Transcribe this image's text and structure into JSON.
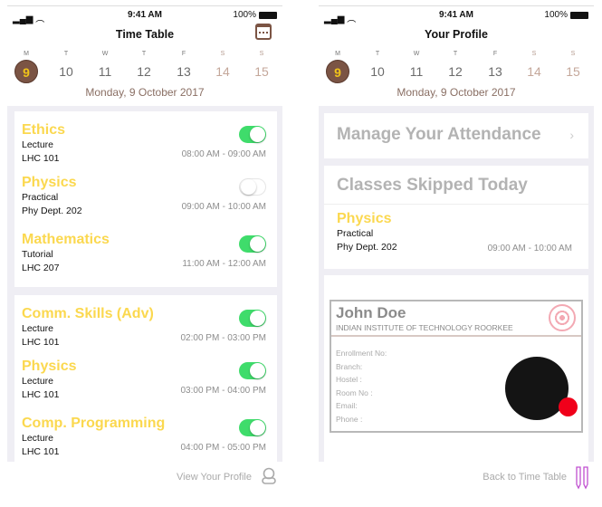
{
  "status": {
    "time": "9:41 AM",
    "battery": "100%"
  },
  "week": [
    {
      "letter": "M",
      "num": "9",
      "selected": true
    },
    {
      "letter": "T",
      "num": "10"
    },
    {
      "letter": "W",
      "num": "11"
    },
    {
      "letter": "T",
      "num": "12"
    },
    {
      "letter": "F",
      "num": "13"
    },
    {
      "letter": "S",
      "num": "14",
      "weekend": true
    },
    {
      "letter": "S",
      "num": "15",
      "weekend": true
    }
  ],
  "date": "Monday, 9 October 2017",
  "timetable": {
    "title": "Time Table",
    "morning": [
      {
        "name": "Ethics",
        "type": "Lecture",
        "room": "LHC 101",
        "time": "08:00 AM - 09:00 AM",
        "attending": true
      },
      {
        "name": "Physics",
        "type": "Practical",
        "room": "Phy Dept. 202",
        "time": "09:00 AM - 10:00 AM",
        "attending": false
      },
      {
        "name": "Mathematics",
        "type": "Tutorial",
        "room": "LHC 207",
        "time": "11:00 AM - 12:00 AM",
        "attending": true
      }
    ],
    "afternoon": [
      {
        "name": "Comm. Skills (Adv)",
        "type": "Lecture",
        "room": "LHC 101",
        "time": "02:00 PM - 03:00 PM",
        "attending": true
      },
      {
        "name": "Physics",
        "type": "Lecture",
        "room": "LHC 101",
        "time": "03:00 PM - 04:00 PM",
        "attending": true
      },
      {
        "name": "Comp. Programming",
        "type": "Lecture",
        "room": "LHC 101",
        "time": "04:00 PM - 05:00 PM",
        "attending": true
      }
    ],
    "footer_link": "View Your Profile"
  },
  "profile": {
    "title": "Your Profile",
    "manage": "Manage Your Attendance",
    "skipped_title": "Classes Skipped Today",
    "skipped": {
      "name": "Physics",
      "type": "Practical",
      "room": "Phy Dept. 202",
      "time": "09:00 AM - 10:00 AM"
    },
    "id": {
      "name": "John Doe",
      "institute": "INDIAN INSTITUTE OF TECHNOLOGY ROORKEE",
      "fields": [
        "Enrollment No:",
        "Branch:",
        "Hostel :",
        "Room No :",
        "Email:",
        "Phone :"
      ]
    },
    "footer_link": "Back to Time Table"
  },
  "colors": {
    "accent": "#7b5444",
    "class_name": "#fbd84f",
    "toggle_on": "#3fdc6b",
    "status_dot": "#f0001a"
  }
}
